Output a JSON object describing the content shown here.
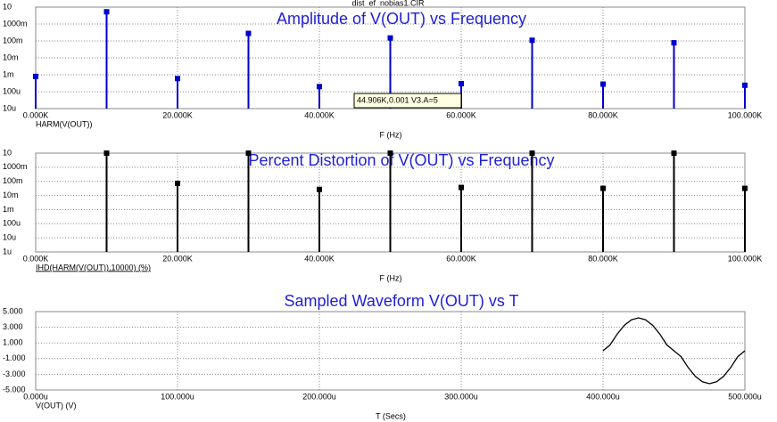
{
  "window_title": "dist_ef_nobias1.CIR",
  "chart_data": [
    {
      "type": "stem",
      "title": "Amplitude of V(OUT) vs Frequency",
      "x_label": "F (Hz)",
      "log_y": true,
      "grid": true,
      "annotation": "44.906K,0.001 V3.A=5",
      "x": [
        0,
        10000,
        20000,
        30000,
        40000,
        50000,
        60000,
        70000,
        80000,
        90000,
        100000
      ],
      "series": [
        {
          "name": "HARM(V(OUT))",
          "color": "#0000cc",
          "values": [
            0.0008,
            5.3,
            0.0006,
            0.28,
            0.0002,
            0.15,
            0.0003,
            0.11,
            0.00028,
            0.078,
            0.00024
          ]
        }
      ],
      "xlim": [
        0,
        100000
      ],
      "xticks": [
        {
          "value": 0,
          "label": "0.000K"
        },
        {
          "value": 20000,
          "label": "20.000K"
        },
        {
          "value": 40000,
          "label": "40.000K"
        },
        {
          "value": 60000,
          "label": "60.000K"
        },
        {
          "value": 80000,
          "label": "80.000K"
        },
        {
          "value": 100000,
          "label": "100.000K"
        }
      ],
      "ylim": [
        1e-05,
        10
      ],
      "yticks": [
        {
          "value": 1e-05,
          "label": "10u"
        },
        {
          "value": 0.0001,
          "label": "100u"
        },
        {
          "value": 0.001,
          "label": "1m"
        },
        {
          "value": 0.01,
          "label": "10m"
        },
        {
          "value": 0.1,
          "label": "100m"
        },
        {
          "value": 1,
          "label": "1000m"
        },
        10
      ]
    },
    {
      "type": "stem",
      "title": "Percent Distortion of V(OUT) vs Frequency",
      "x_label": "F (Hz)",
      "log_y": true,
      "grid": true,
      "x": [
        10000,
        20000,
        30000,
        40000,
        50000,
        60000,
        70000,
        80000,
        90000,
        100000
      ],
      "series": [
        {
          "name": "IHD(HARM(V(OUT)),10000) (%)",
          "color": "#000000",
          "values": [
            10,
            0.072,
            10,
            0.027,
            10,
            0.037,
            10,
            0.032,
            10,
            0.032
          ]
        }
      ],
      "xlim": [
        0,
        100000
      ],
      "xticks": [
        {
          "value": 0,
          "label": "0.000K"
        },
        {
          "value": 20000,
          "label": "20.000K"
        },
        {
          "value": 40000,
          "label": "40.000K"
        },
        {
          "value": 60000,
          "label": "60.000K"
        },
        {
          "value": 80000,
          "label": "80.000K"
        },
        {
          "value": 100000,
          "label": "100.000K"
        }
      ],
      "ylim": [
        1e-06,
        10
      ],
      "yticks": [
        {
          "value": 1e-06,
          "label": "1u"
        },
        {
          "value": 1e-05,
          "label": "10u"
        },
        {
          "value": 0.0001,
          "label": "100u"
        },
        {
          "value": 0.001,
          "label": "1m"
        },
        {
          "value": 0.01,
          "label": "10m"
        },
        {
          "value": 0.1,
          "label": "100m"
        },
        {
          "value": 1,
          "label": "1000m"
        },
        10
      ]
    },
    {
      "type": "line",
      "title": "Sampled Waveform  V(OUT) vs T",
      "x_label": "T (Secs)",
      "log_y": false,
      "grid": true,
      "x": [
        0.0004,
        0.000405,
        0.00041,
        0.000415,
        0.00042,
        0.000425,
        0.00043,
        0.000435,
        0.00044,
        0.000445,
        0.00045,
        0.000455,
        0.00046,
        0.000465,
        0.00047,
        0.000475,
        0.00048,
        0.000485,
        0.00049,
        0.000495,
        0.0005
      ],
      "series": [
        {
          "name": "V(OUT) (V)",
          "color": "#000000",
          "values": [
            0,
            0.75,
            2.14,
            3.25,
            3.96,
            4.2,
            3.96,
            3.25,
            2.14,
            0.75,
            0,
            -0.75,
            -2.14,
            -3.25,
            -3.96,
            -4.2,
            -3.96,
            -3.25,
            -2.14,
            -0.75,
            0
          ]
        }
      ],
      "xlim": [
        0,
        0.0005
      ],
      "xticks": [
        {
          "value": 0,
          "label": "0.000u"
        },
        {
          "value": 0.0001,
          "label": "100.000u"
        },
        {
          "value": 0.0002,
          "label": "200.000u"
        },
        {
          "value": 0.0003,
          "label": "300.000u"
        },
        {
          "value": 0.0004,
          "label": "400.000u"
        },
        {
          "value": 0.0005,
          "label": "500.000u"
        }
      ],
      "ylim": [
        -5,
        5
      ],
      "yticks": [
        {
          "value": -5,
          "label": "-5.000"
        },
        {
          "value": -3,
          "label": "-3.000"
        },
        {
          "value": -1,
          "label": "-1.000"
        },
        {
          "value": 1,
          "label": "1.000"
        },
        {
          "value": 3,
          "label": "3.000"
        },
        {
          "value": 5,
          "label": "5.000"
        }
      ]
    }
  ]
}
